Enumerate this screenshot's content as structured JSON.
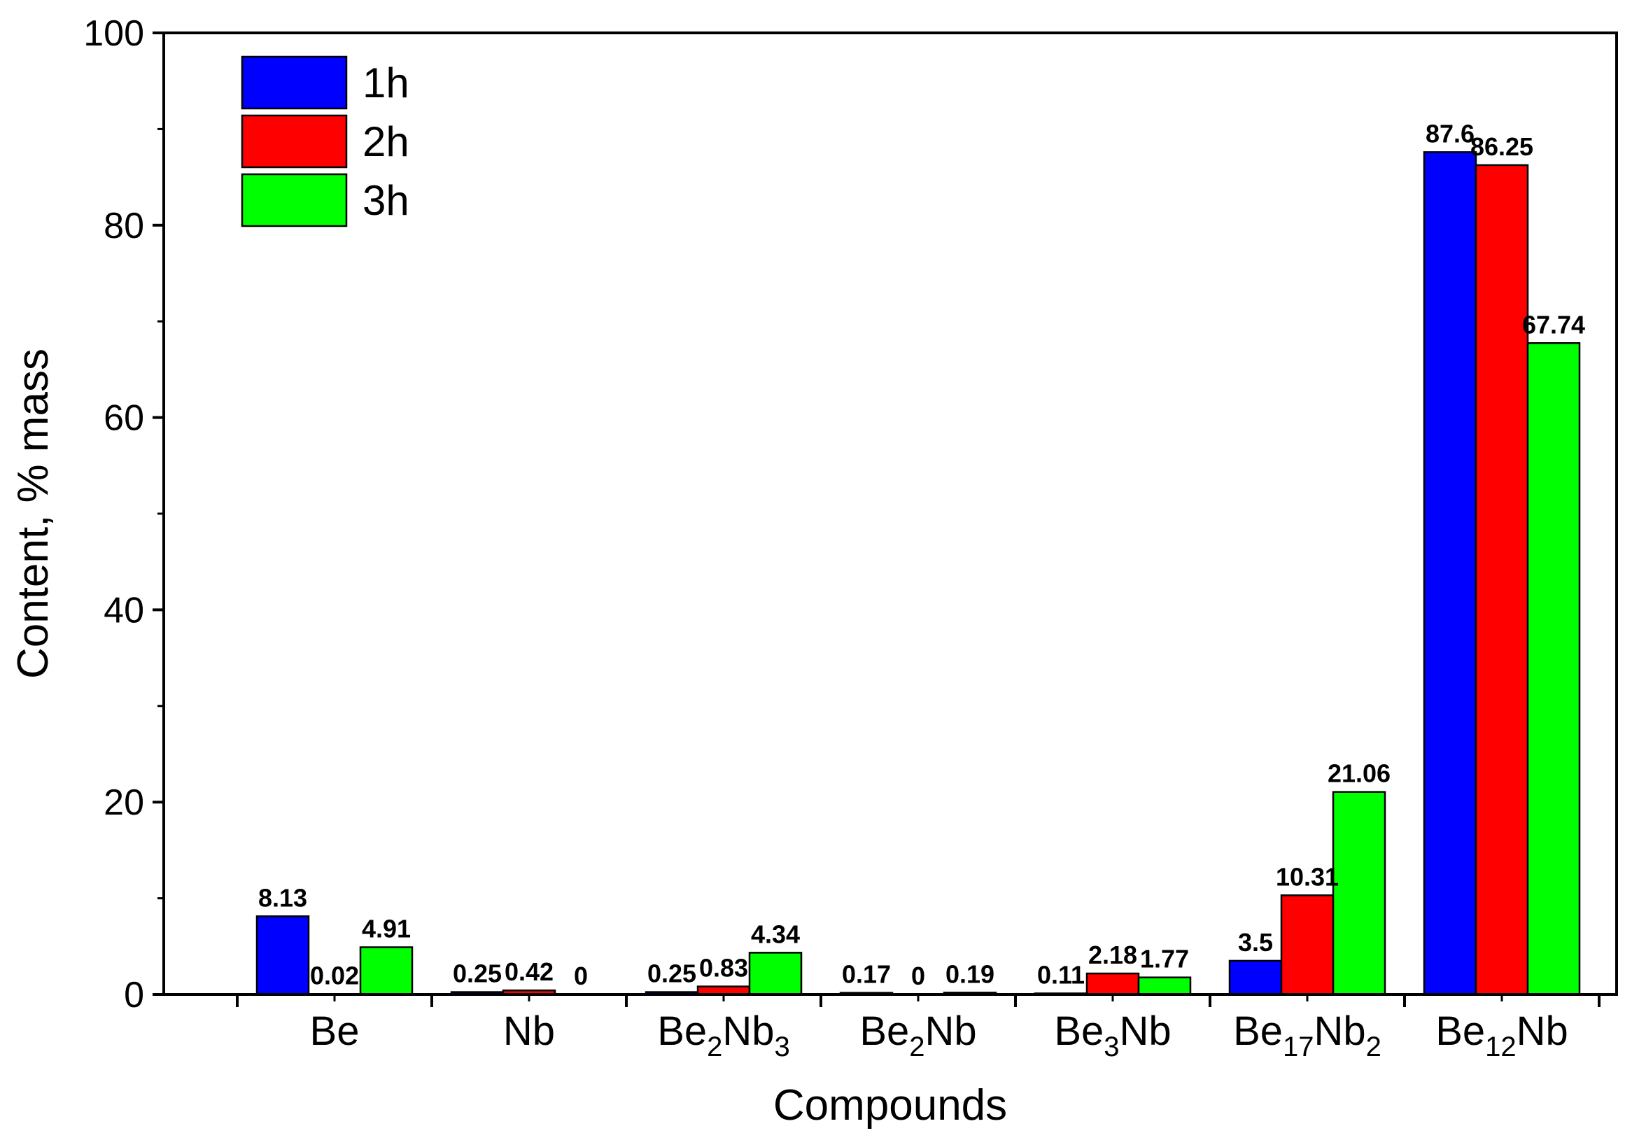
{
  "chart_data": {
    "type": "bar",
    "title": "",
    "xlabel": "Compounds",
    "ylabel": "Content, % mass",
    "ylim": [
      0,
      100
    ],
    "yticks": [
      0,
      20,
      40,
      60,
      80,
      100
    ],
    "grid": false,
    "legend_placement": "top-left",
    "categories": [
      {
        "base": "Be",
        "sub1": "",
        "mid": "",
        "sub2": ""
      },
      {
        "base": "Nb",
        "sub1": "",
        "mid": "",
        "sub2": ""
      },
      {
        "base": "Be",
        "sub1": "2",
        "mid": "Nb",
        "sub2": "3"
      },
      {
        "base": "Be",
        "sub1": "2",
        "mid": "Nb",
        "sub2": ""
      },
      {
        "base": "Be",
        "sub1": "3",
        "mid": "Nb",
        "sub2": ""
      },
      {
        "base": "Be",
        "sub1": "17",
        "mid": "Nb",
        "sub2": "2"
      },
      {
        "base": "Be",
        "sub1": "12",
        "mid": "Nb",
        "sub2": ""
      }
    ],
    "series": [
      {
        "name": "1h",
        "color": "#0000ff",
        "values": [
          8.13,
          0.25,
          0.25,
          0.17,
          0.11,
          3.5,
          87.6
        ],
        "labels": [
          "8.13",
          "0.25",
          "0.25",
          "0.17",
          "0.11",
          "3.5",
          "87.6"
        ]
      },
      {
        "name": "2h",
        "color": "#ff0000",
        "values": [
          0.02,
          0.42,
          0.83,
          0,
          2.18,
          10.31,
          86.25
        ],
        "labels": [
          "0.02",
          "0.42",
          "0.83",
          "0",
          "2.18",
          "10.31",
          "86.25"
        ]
      },
      {
        "name": "3h",
        "color": "#00ff00",
        "values": [
          4.91,
          0,
          4.34,
          0.19,
          1.77,
          21.06,
          67.74
        ],
        "labels": [
          "4.91",
          "0",
          "4.34",
          "0.19",
          "1.77",
          "21.06",
          "67.74"
        ]
      }
    ]
  }
}
